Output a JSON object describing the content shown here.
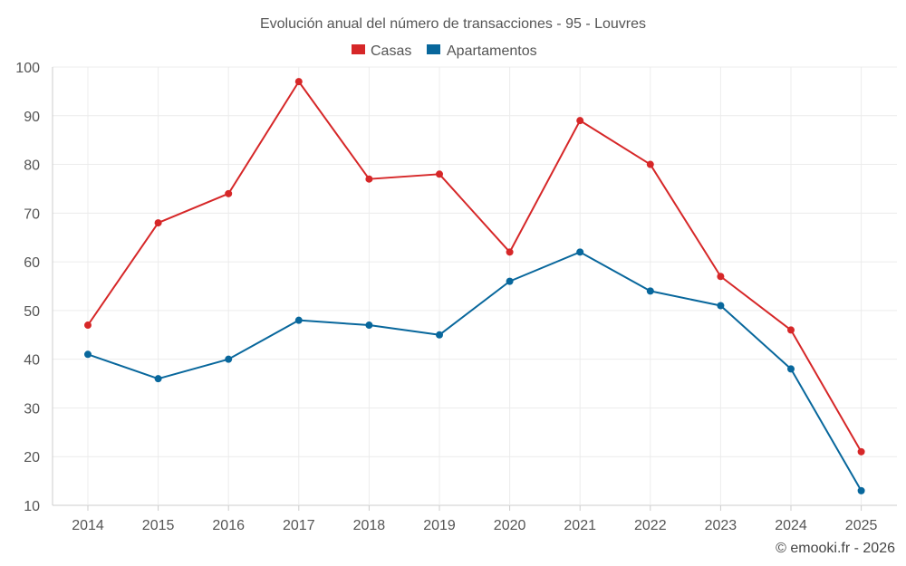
{
  "chart_data": {
    "type": "line",
    "title": "Evolución anual del número de transacciones - 95 - Louvres",
    "categories": [
      "2014",
      "2015",
      "2016",
      "2017",
      "2018",
      "2019",
      "2020",
      "2021",
      "2022",
      "2023",
      "2024",
      "2025"
    ],
    "series": [
      {
        "name": "Casas",
        "color": "#d62728",
        "values": [
          47,
          68,
          74,
          97,
          77,
          78,
          62,
          89,
          80,
          57,
          46,
          21
        ]
      },
      {
        "name": "Apartamentos",
        "color": "#08679c",
        "values": [
          41,
          36,
          40,
          48,
          47,
          45,
          56,
          62,
          54,
          51,
          38,
          13
        ]
      }
    ],
    "yticks": [
      "10",
      "20",
      "30",
      "40",
      "50",
      "60",
      "70",
      "80",
      "90",
      "100"
    ],
    "ylim": [
      10,
      100
    ],
    "xlabel": "",
    "ylabel": "",
    "grid": true,
    "legend_position": "top-center"
  },
  "credit": "© emooki.fr - 2026"
}
